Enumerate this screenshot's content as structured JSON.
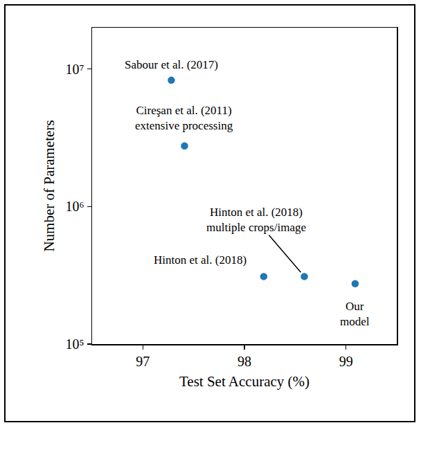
{
  "chart_data": {
    "type": "scatter",
    "x_label": "Test Set Accuracy (%)",
    "y_label": "Number of Parameters",
    "log": "y",
    "grid": false,
    "marker": "circle",
    "color": "#1f77b4",
    "xlim": [
      96.5,
      99.5
    ],
    "xticks": [
      97,
      98,
      99
    ],
    "ylim": [
      100000,
      20000000
    ],
    "yticks": [
      {
        "value": 100000,
        "label": "10⁵"
      },
      {
        "value": 1000000,
        "label": "10⁶"
      },
      {
        "value": 10000000,
        "label": "10⁷"
      }
    ],
    "x": [
      97.28,
      97.41,
      98.19,
      98.59,
      99.09
    ],
    "values": [
      8300000,
      2760000,
      310000,
      310000,
      275000
    ],
    "point_labels": [
      [
        "Sabour et al. (2017)"
      ],
      [
        "Cireşan et al. (2011)",
        "extensive processing"
      ],
      [
        "Hinton et al. (2018)"
      ],
      [
        "Hinton et al. (2018)",
        "multiple crops/image"
      ],
      [
        "Our",
        "model"
      ]
    ]
  }
}
